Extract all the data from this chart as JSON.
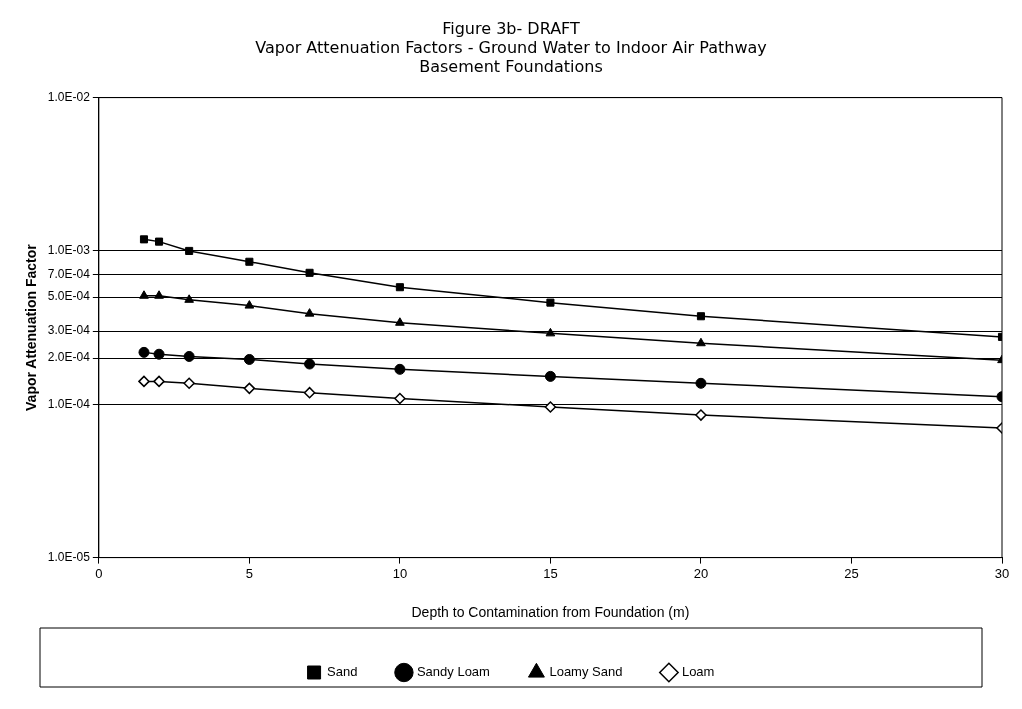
{
  "chart_data": {
    "type": "line",
    "title": "Figure 3b- DRAFT",
    "subtitle": "Vapor Attenuation Factors - Ground Water to Indoor Air Pathway\nBasement Foundations",
    "xlabel": "Depth to Contamination from Foundation (m)",
    "ylabel": "Vapor Attenuation Factor",
    "x": [
      1.5,
      2,
      3,
      5,
      7,
      10,
      15,
      20,
      30
    ],
    "series": [
      {
        "name": "Sand",
        "color": "#000000",
        "marker": "square",
        "values": [
          0.00119,
          0.00115,
          0.001,
          0.00085,
          0.00072,
          0.00058,
          0.00046,
          0.000375,
          0.000275
        ]
      },
      {
        "name": "Sandy Loam",
        "color": "#000000",
        "marker": "circle",
        "values": [
          0.000218,
          0.000212,
          0.000205,
          0.000196,
          0.000183,
          0.000169,
          0.000152,
          0.000137,
          0.000112
        ]
      },
      {
        "name": "Loamy Sand",
        "color": "#000000",
        "marker": "triangle",
        "values": [
          0.00051,
          0.00051,
          0.00048,
          0.00044,
          0.00039,
          0.00034,
          0.00029,
          0.00025,
          0.000194
        ]
      },
      {
        "name": "Loam",
        "color": "#000000",
        "marker": "diamond",
        "values": [
          0.000141,
          0.000141,
          0.000137,
          0.000127,
          0.000119,
          0.000109,
          9.6e-05,
          8.5e-05,
          7e-05
        ]
      }
    ],
    "log": "y",
    "xlim": [
      0,
      30
    ],
    "xticks": [
      0,
      5,
      10,
      15,
      20,
      25,
      30
    ],
    "ylim": [
      1e-05,
      0.01
    ],
    "yticks": [
      {
        "value": 0.01,
        "label": "1.0E-02"
      },
      {
        "value": 0.001,
        "label": "1.0E-03"
      },
      {
        "value": 0.0007,
        "label": "7.0E-04"
      },
      {
        "value": 0.0005,
        "label": "5.0E-04"
      },
      {
        "value": 0.0003,
        "label": "3.0E-04"
      },
      {
        "value": 0.0002,
        "label": "2.0E-04"
      },
      {
        "value": 0.0001,
        "label": "1.0E-04"
      },
      {
        "value": 1e-05,
        "label": "1.0E-05"
      }
    ],
    "grid": "y",
    "legend": "bottom",
    "line_style": "solid"
  }
}
